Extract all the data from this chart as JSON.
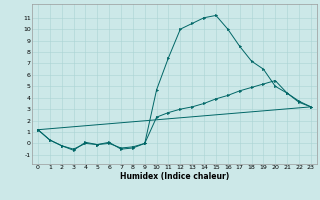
{
  "title": "",
  "xlabel": "Humidex (Indice chaleur)",
  "bg_color": "#cce8e8",
  "line_color": "#006666",
  "grid_color": "#aad4d4",
  "xlim": [
    -0.5,
    23.5
  ],
  "ylim": [
    -1.8,
    12.2
  ],
  "yticks": [
    -1,
    0,
    1,
    2,
    3,
    4,
    5,
    6,
    7,
    8,
    9,
    10,
    11
  ],
  "xticks": [
    0,
    1,
    2,
    3,
    4,
    5,
    6,
    7,
    8,
    9,
    10,
    11,
    12,
    13,
    14,
    15,
    16,
    17,
    18,
    19,
    20,
    21,
    22,
    23
  ],
  "line1_x": [
    0,
    1,
    2,
    3,
    4,
    5,
    6,
    7,
    8,
    9,
    10,
    11,
    12,
    13,
    14,
    15,
    16,
    17,
    18,
    19,
    20,
    21,
    22,
    23
  ],
  "line1_y": [
    1.2,
    0.3,
    -0.2,
    -0.6,
    0.1,
    -0.1,
    0.1,
    -0.5,
    -0.4,
    0.0,
    4.7,
    7.5,
    10.0,
    10.5,
    11.0,
    11.2,
    10.0,
    8.5,
    7.2,
    6.5,
    5.0,
    4.4,
    3.6,
    3.2
  ],
  "line2_x": [
    0,
    1,
    2,
    3,
    4,
    5,
    6,
    7,
    8,
    9,
    10,
    11,
    12,
    13,
    14,
    15,
    16,
    17,
    18,
    19,
    20,
    21,
    22,
    23
  ],
  "line2_y": [
    1.2,
    0.3,
    -0.2,
    -0.5,
    0.0,
    -0.1,
    0.0,
    -0.4,
    -0.3,
    0.0,
    2.3,
    2.7,
    3.0,
    3.2,
    3.5,
    3.9,
    4.2,
    4.6,
    4.9,
    5.2,
    5.5,
    4.4,
    3.7,
    3.2
  ],
  "line3_x": [
    0,
    23
  ],
  "line3_y": [
    1.2,
    3.2
  ],
  "xlabel_fontsize": 5.5,
  "tick_fontsize": 4.5
}
